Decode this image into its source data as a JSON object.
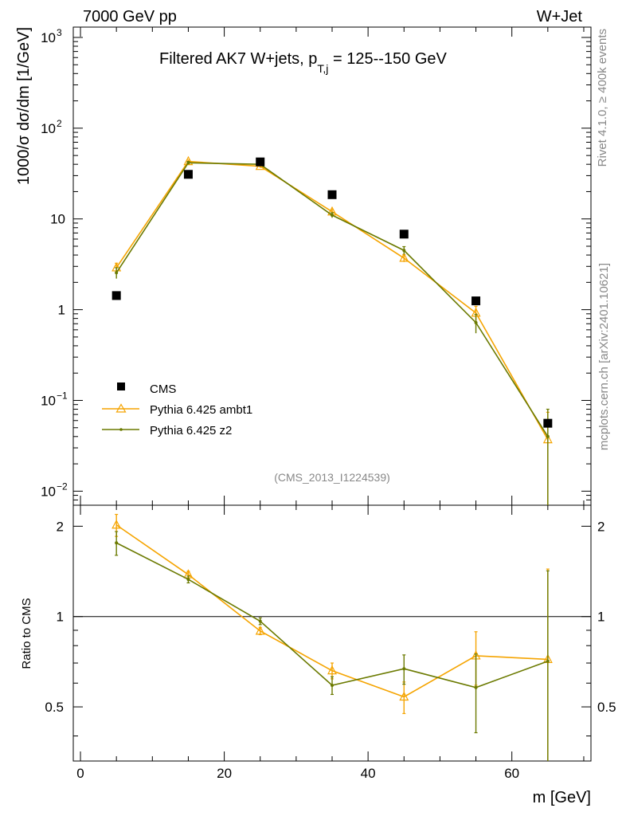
{
  "header": {
    "left": "7000 GeV pp",
    "right": "W+Jet"
  },
  "side_labels": {
    "rivet": "Rivet 4.1.0, ≥ 400k events",
    "mcplots": "mcplots.cern.ch [arXiv:2401.10621]"
  },
  "chart_data": {
    "type": "scatter",
    "title_main": "Filtered AK7 W+jets, p",
    "title_sub": "T,j",
    "title_rest": " = 125--150 GeV",
    "watermark": "(CMS_2013_I1224539)",
    "xlabel": "m [GeV]",
    "ylabel": "1000/σ  dσ/dm [1/GeV]",
    "ratio_ylabel": "Ratio to CMS",
    "xlim": [
      -1,
      71
    ],
    "ylim": [
      0.007,
      1300
    ],
    "ratio_ylim": [
      0.33,
      2.35
    ],
    "x_ticks": [
      0,
      20,
      40,
      60
    ],
    "x_tick_labels": [
      "0",
      "20",
      "40",
      "60"
    ],
    "y_tick_labels": [
      "10^3",
      "10^2",
      "10",
      "1",
      "10^-1",
      "10^-2"
    ],
    "ratio_tick_labels": [
      "2",
      "1",
      "0.5"
    ],
    "x": [
      5,
      15,
      25,
      35,
      45,
      55,
      65
    ],
    "series": [
      {
        "name": "CMS",
        "color": "#000000",
        "marker": "square",
        "values": [
          1.43,
          31,
          42.5,
          18.5,
          6.8,
          1.25,
          0.056
        ]
      },
      {
        "name": "Pythia 6.425 ambt1",
        "color": "#f5a400",
        "marker": "triangle",
        "values": [
          2.9,
          43,
          38,
          12,
          3.7,
          0.92,
          0.037
        ],
        "err": [
          0.35,
          1.5,
          1.5,
          0.7,
          0.35,
          0.17,
          0.037
        ],
        "ratio": [
          2.02,
          1.38,
          0.895,
          0.66,
          0.54,
          0.74,
          0.72
        ],
        "ratio_err": [
          0.17,
          0.035,
          0.025,
          0.04,
          0.065,
          0.15,
          0.72
        ]
      },
      {
        "name": "Pythia 6.425 z2",
        "color": "#6b7a00",
        "marker": "dot",
        "values": [
          2.55,
          41.5,
          40,
          11,
          4.5,
          0.72,
          0.04
        ],
        "err": [
          0.35,
          1.5,
          1.5,
          0.7,
          0.45,
          0.17,
          0.04
        ],
        "ratio": [
          1.76,
          1.33,
          0.965,
          0.59,
          0.67,
          0.58,
          0.71
        ],
        "ratio_err": [
          0.16,
          0.035,
          0.025,
          0.04,
          0.075,
          0.17,
          0.71
        ]
      }
    ],
    "legend_position": "middle-left"
  }
}
